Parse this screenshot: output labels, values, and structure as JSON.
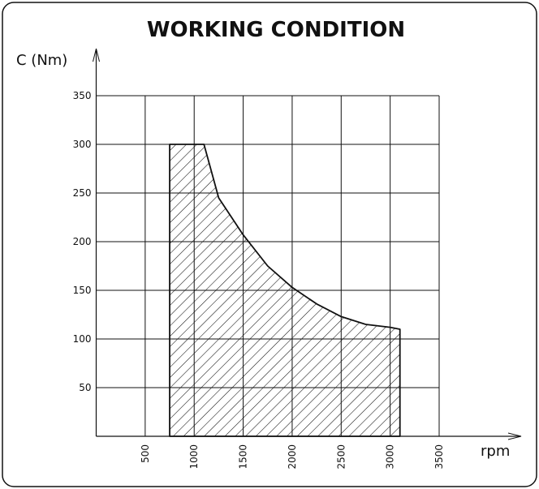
{
  "chart_data": {
    "type": "area",
    "title": "WORKING CONDITION",
    "y_label": "C (Nm)",
    "x_label": "rpm",
    "x": [
      750,
      750,
      1100,
      1250,
      1500,
      1750,
      2000,
      2250,
      2500,
      2750,
      3000,
      3100,
      3100
    ],
    "series": [
      {
        "color": "#111111",
        "hatch": true,
        "values": [
          0,
          300,
          300,
          245,
          207,
          175,
          153,
          136,
          123,
          115,
          112,
          110,
          0
        ]
      }
    ],
    "xlim": [
      0,
      3500
    ],
    "xticks": [
      500,
      1000,
      1500,
      2000,
      2500,
      3000,
      3500
    ],
    "ylim": [
      0,
      350
    ],
    "yticks": [
      50,
      100,
      150,
      200,
      250,
      300,
      350
    ],
    "grid": true
  }
}
